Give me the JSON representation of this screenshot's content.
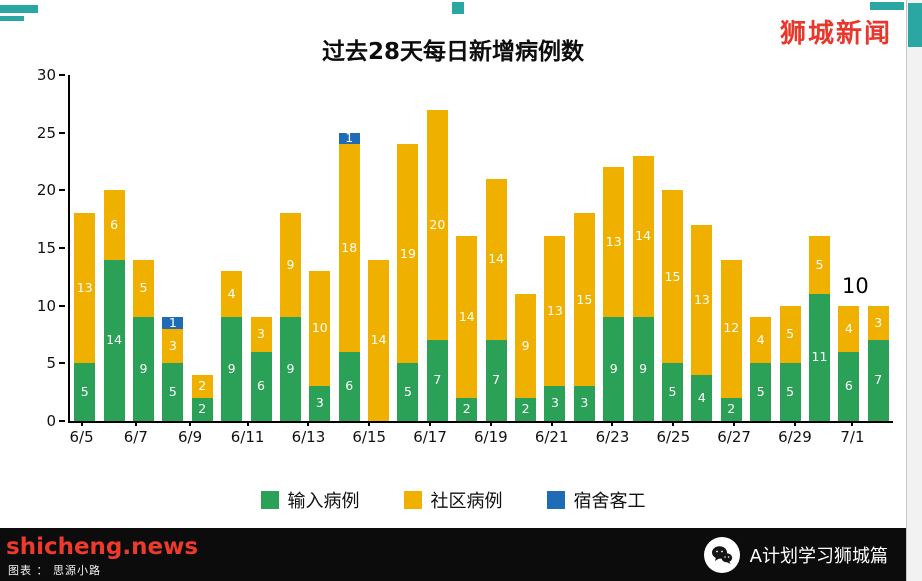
{
  "window": {
    "brand": "狮城新闻",
    "footer": {
      "site": "shicheng.news",
      "credit": "图表 ： 思源小路",
      "account": "A计划学习狮城篇"
    }
  },
  "chart_data": {
    "type": "bar",
    "stacked": true,
    "title": "过去28天每日新增病例数",
    "ylim": [
      0,
      30
    ],
    "yticks": [
      0,
      5,
      10,
      15,
      20,
      25,
      30
    ],
    "xtick_labels": [
      "6/5",
      "6/7",
      "6/9",
      "6/11",
      "6/13",
      "6/15",
      "6/17",
      "6/19",
      "6/21",
      "6/23",
      "6/25",
      "6/27",
      "6/29",
      "7/1"
    ],
    "grid": false,
    "legend_position": "bottom",
    "annotation": "10",
    "legend": [
      {
        "label": "输入病例",
        "color": "#2ba157"
      },
      {
        "label": "社区病例",
        "color": "#efb000"
      },
      {
        "label": "宿舍客工",
        "color": "#1e6cb5"
      }
    ],
    "series": [
      {
        "name": "输入病例",
        "values": [
          5,
          14,
          9,
          5,
          2,
          9,
          6,
          9,
          3,
          6,
          0,
          5,
          7,
          2,
          7,
          2,
          3,
          3,
          9,
          9,
          5,
          4,
          2,
          5,
          5,
          11,
          6,
          7
        ]
      },
      {
        "name": "社区病例",
        "values": [
          13,
          6,
          5,
          3,
          2,
          4,
          3,
          9,
          10,
          18,
          14,
          19,
          20,
          14,
          14,
          9,
          13,
          15,
          13,
          14,
          15,
          13,
          12,
          4,
          5,
          5,
          4,
          3
        ]
      },
      {
        "name": "宿舍客工",
        "values": [
          0,
          0,
          0,
          1,
          0,
          0,
          0,
          0,
          0,
          1,
          0,
          0,
          0,
          0,
          0,
          0,
          0,
          0,
          0,
          0,
          0,
          0,
          0,
          0,
          0,
          0,
          0,
          0
        ]
      }
    ]
  }
}
